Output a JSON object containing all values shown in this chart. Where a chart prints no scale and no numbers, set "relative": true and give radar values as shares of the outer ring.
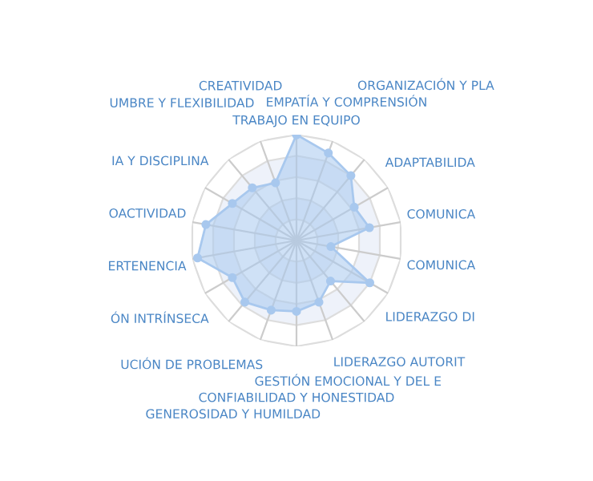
{
  "chart_data": {
    "type": "radar",
    "relative": true,
    "grid": true,
    "marker": "circle",
    "categories": [
      "TRABAJO EN EQUIPO",
      "EMPATÍA Y COMPRENSIÓN",
      "ORGANIZACIÓN Y PLA",
      "ADAPTABILIDA",
      "COMUNICA",
      "COMUNICA",
      "LIDERAZGO DI",
      "LIDERAZGO AUTORIT",
      "GESTIÓN EMOCIONAL Y DEL E",
      "CONFIABILIDAD Y HONESTIDAD",
      "GENEROSIDAD Y HUMILDAD",
      "UCIÓN DE PROBLEMAS",
      "ÓN INTRÍNSECA",
      "ERTENENCIA",
      "OACTIVIDAD",
      "IA Y DISCIPLINA",
      "UMBRE Y FLEXIBILIDAD",
      "CREATIVIDAD"
    ],
    "series": [
      {
        "color": "#a8c8ee",
        "values": [
          1.0,
          0.88,
          0.8,
          0.63,
          0.7,
          0.33,
          0.8,
          0.5,
          0.62,
          0.67,
          0.7,
          0.76,
          0.7,
          0.95,
          0.87,
          0.7,
          0.65,
          0.58
        ]
      }
    ]
  }
}
